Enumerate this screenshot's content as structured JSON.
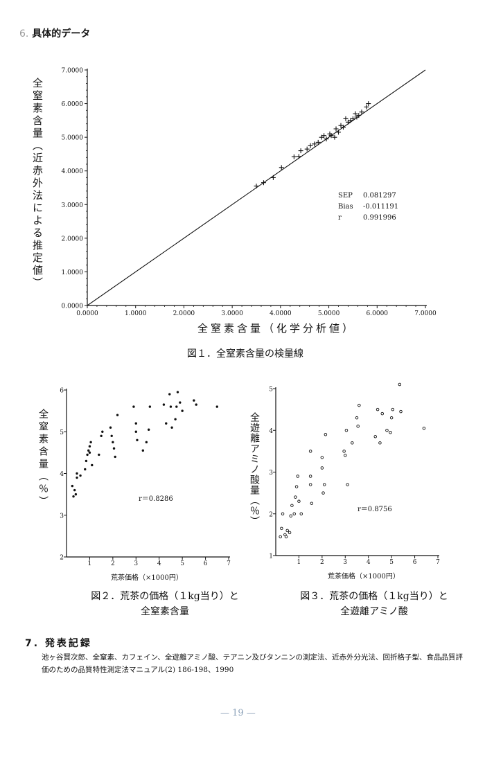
{
  "section6": {
    "number": "6.",
    "title": "具体的データ"
  },
  "fig1": {
    "ylabel": "全窒素含量（近赤外法による推定値）",
    "xlabel": "全窒素含量（化学分析値）",
    "caption": "図１．全窒素含量の検量線",
    "stats": [
      {
        "key": "SEP",
        "value": "0.081297"
      },
      {
        "key": "Bias",
        "value": "-0.011191"
      },
      {
        "key": "r",
        "value": "0.991996"
      }
    ]
  },
  "fig2": {
    "ylabel": "全窒素含量（％）",
    "xlabel": "荒茶価格（×1000円）",
    "r_label": "r＝0.8286",
    "caption_line1": "図２．荒茶の価格（１kg当り）と",
    "caption_line2": "全窒素含量"
  },
  "fig3": {
    "ylabel": "全遊離アミノ酸量（％）",
    "xlabel": "荒茶価格（×1000円）",
    "r_label": "r＝0.8756",
    "caption_line1": "図３．荒茶の価格（１kg当り）と",
    "caption_line2": "全遊離アミノ酸"
  },
  "section7": {
    "number": "7.",
    "title": "発表記録"
  },
  "references": "池ヶ谷賢次郎、全窒素、カフェイン、全遊離アミノ酸、テアニン及びタンニンの測定法、近赤外分光法、回折格子型、食品品質評価のための品質特性測定法マニュアル(2) 186-198、1990",
  "page_number": "— 19 —",
  "chart_data": [
    {
      "type": "scatter",
      "title": "",
      "xlabel": "全窒素含量（化学分析値）",
      "ylabel": "全窒素含量（近赤外法による推定値）",
      "xlim": [
        0,
        7
      ],
      "ylim": [
        0,
        7
      ],
      "x_ticks": [
        "0.0000",
        "1.0000",
        "2.0000",
        "3.0000",
        "4.0000",
        "5.0000",
        "6.0000",
        "7.0000"
      ],
      "y_ticks": [
        "0.0000",
        "1.0000",
        "2.0000",
        "3.0000",
        "4.0000",
        "5.0000",
        "6.0000",
        "7.0000"
      ],
      "marker": "plus",
      "fit_line": [
        [
          0,
          0
        ],
        [
          7,
          7
        ]
      ],
      "points": [
        [
          3.5,
          3.55
        ],
        [
          3.65,
          3.65
        ],
        [
          3.85,
          3.8
        ],
        [
          4.02,
          4.1
        ],
        [
          4.28,
          4.42
        ],
        [
          4.38,
          4.43
        ],
        [
          4.42,
          4.6
        ],
        [
          4.55,
          4.65
        ],
        [
          4.62,
          4.75
        ],
        [
          4.7,
          4.8
        ],
        [
          4.78,
          4.85
        ],
        [
          4.85,
          5.0
        ],
        [
          4.9,
          5.05
        ],
        [
          4.95,
          4.95
        ],
        [
          5.02,
          5.1
        ],
        [
          5.05,
          5.05
        ],
        [
          5.12,
          5.0
        ],
        [
          5.15,
          5.25
        ],
        [
          5.2,
          5.15
        ],
        [
          5.25,
          5.35
        ],
        [
          5.3,
          5.3
        ],
        [
          5.35,
          5.55
        ],
        [
          5.4,
          5.45
        ],
        [
          5.45,
          5.5
        ],
        [
          5.5,
          5.55
        ],
        [
          5.55,
          5.7
        ],
        [
          5.58,
          5.6
        ],
        [
          5.62,
          5.65
        ],
        [
          5.68,
          5.75
        ],
        [
          5.78,
          5.9
        ],
        [
          5.82,
          6.0
        ]
      ]
    },
    {
      "type": "scatter",
      "title": "",
      "xlabel": "荒茶価格（×1000円）",
      "ylabel": "全窒素含量（％）",
      "xlim": [
        0,
        7
      ],
      "ylim": [
        2,
        6
      ],
      "x_ticks": [
        "1",
        "2",
        "3",
        "4",
        "5",
        "6",
        "7"
      ],
      "y_ticks": [
        "2",
        "3",
        "4",
        "5",
        "6"
      ],
      "r_label": "r＝0.8286",
      "points": [
        [
          0.25,
          3.7
        ],
        [
          0.3,
          3.45
        ],
        [
          0.35,
          3.6
        ],
        [
          0.4,
          3.5
        ],
        [
          0.45,
          3.9
        ],
        [
          0.45,
          4.0
        ],
        [
          0.6,
          3.95
        ],
        [
          0.8,
          4.1
        ],
        [
          0.85,
          4.3
        ],
        [
          0.9,
          4.45
        ],
        [
          0.95,
          4.55
        ],
        [
          1.0,
          4.65
        ],
        [
          1.0,
          4.5
        ],
        [
          1.05,
          4.75
        ],
        [
          1.1,
          4.2
        ],
        [
          1.4,
          4.45
        ],
        [
          1.5,
          4.9
        ],
        [
          1.55,
          5.0
        ],
        [
          1.9,
          5.1
        ],
        [
          1.95,
          4.9
        ],
        [
          2.0,
          4.75
        ],
        [
          2.05,
          4.6
        ],
        [
          2.1,
          4.4
        ],
        [
          2.2,
          5.4
        ],
        [
          2.9,
          5.6
        ],
        [
          3.0,
          5.2
        ],
        [
          3.0,
          5.0
        ],
        [
          3.05,
          4.8
        ],
        [
          3.3,
          4.55
        ],
        [
          3.45,
          4.75
        ],
        [
          3.55,
          5.05
        ],
        [
          3.6,
          5.6
        ],
        [
          4.2,
          5.65
        ],
        [
          4.3,
          5.2
        ],
        [
          4.45,
          5.9
        ],
        [
          4.5,
          5.6
        ],
        [
          4.55,
          5.1
        ],
        [
          4.7,
          5.3
        ],
        [
          4.75,
          5.6
        ],
        [
          4.8,
          5.95
        ],
        [
          4.9,
          5.7
        ],
        [
          5.0,
          5.5
        ],
        [
          5.5,
          5.75
        ],
        [
          5.6,
          5.65
        ],
        [
          6.5,
          5.6
        ]
      ]
    },
    {
      "type": "scatter",
      "title": "",
      "xlabel": "荒茶価格（×1000円）",
      "ylabel": "全遊離アミノ酸量（％）",
      "xlim": [
        0,
        7
      ],
      "ylim": [
        1,
        5
      ],
      "x_ticks": [
        "1",
        "2",
        "3",
        "4",
        "5",
        "6",
        "7"
      ],
      "y_ticks": [
        "1",
        "2",
        "3",
        "4",
        "5"
      ],
      "r_label": "r＝0.8756",
      "points": [
        [
          0.2,
          1.45
        ],
        [
          0.25,
          1.65
        ],
        [
          0.3,
          2.0
        ],
        [
          0.4,
          1.5
        ],
        [
          0.45,
          1.45
        ],
        [
          0.5,
          1.6
        ],
        [
          0.6,
          1.55
        ],
        [
          0.65,
          1.95
        ],
        [
          0.7,
          2.2
        ],
        [
          0.8,
          2.0
        ],
        [
          0.85,
          2.4
        ],
        [
          0.9,
          2.65
        ],
        [
          0.95,
          2.9
        ],
        [
          1.0,
          2.3
        ],
        [
          1.1,
          2.0
        ],
        [
          1.5,
          3.5
        ],
        [
          1.5,
          2.9
        ],
        [
          1.5,
          2.7
        ],
        [
          1.55,
          2.25
        ],
        [
          2.0,
          3.35
        ],
        [
          2.0,
          3.1
        ],
        [
          2.05,
          2.5
        ],
        [
          2.1,
          2.7
        ],
        [
          2.15,
          3.9
        ],
        [
          2.95,
          3.5
        ],
        [
          3.0,
          3.4
        ],
        [
          3.05,
          4.0
        ],
        [
          3.1,
          2.7
        ],
        [
          3.3,
          3.7
        ],
        [
          3.5,
          4.3
        ],
        [
          3.55,
          4.1
        ],
        [
          3.6,
          4.6
        ],
        [
          4.3,
          3.85
        ],
        [
          4.4,
          4.5
        ],
        [
          4.5,
          3.7
        ],
        [
          4.6,
          4.4
        ],
        [
          4.8,
          4.0
        ],
        [
          4.95,
          3.95
        ],
        [
          5.0,
          4.3
        ],
        [
          5.05,
          4.5
        ],
        [
          5.35,
          5.1
        ],
        [
          5.4,
          4.45
        ],
        [
          6.4,
          4.05
        ]
      ]
    }
  ]
}
